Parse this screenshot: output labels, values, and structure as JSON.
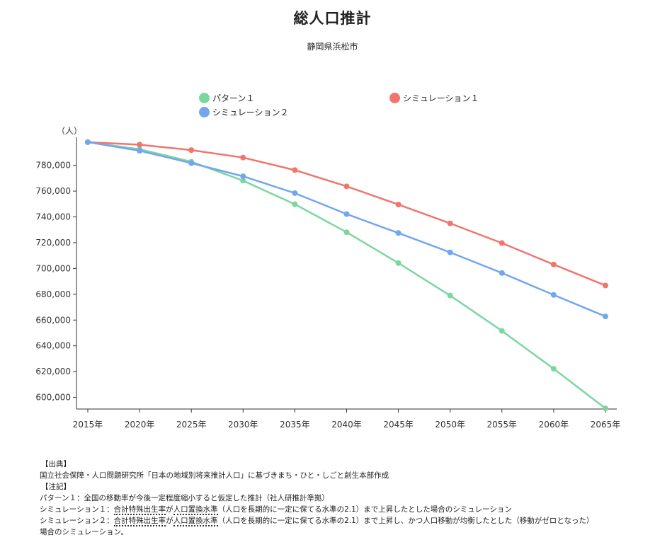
{
  "title": "総人口推計",
  "subtitle": "静岡県浜松市",
  "colors": {
    "pattern1": "#7dd6a0",
    "sim1": "#f0756d",
    "sim2": "#72a6ef",
    "axis": "#333333"
  },
  "legend": [
    {
      "label": "パターン１",
      "color": "#7dd6a0"
    },
    {
      "label": "シミュレーション１",
      "color": "#f0756d"
    },
    {
      "label": "シミュレーション２",
      "color": "#72a6ef"
    }
  ],
  "chart_data": {
    "type": "line",
    "title": "総人口推計",
    "subtitle": "静岡県浜松市",
    "ylabel": "（人）",
    "xlabel": "",
    "ylim": [
      591000,
      799000
    ],
    "yticks": [
      600000,
      620000,
      640000,
      660000,
      680000,
      700000,
      720000,
      740000,
      760000,
      780000
    ],
    "ytick_labels": [
      "600,000",
      "620,000",
      "640,000",
      "660,000",
      "680,000",
      "700,000",
      "720,000",
      "740,000",
      "760,000",
      "780,000"
    ],
    "categories": [
      "2015年",
      "2020年",
      "2025年",
      "2030年",
      "2035年",
      "2040年",
      "2045年",
      "2050年",
      "2055年",
      "2060年",
      "2065年"
    ],
    "legend_position": "top",
    "grid": false,
    "series": [
      {
        "name": "パターン１",
        "color": "#7dd6a0",
        "values": [
          797980,
          792500,
          782800,
          768100,
          749800,
          728100,
          704200,
          679000,
          651600,
          622200,
          591500
        ]
      },
      {
        "name": "シミュレーション１",
        "color": "#f0756d",
        "values": [
          797980,
          796000,
          791800,
          786000,
          776300,
          763700,
          749600,
          735000,
          719700,
          703100,
          686800
        ]
      },
      {
        "name": "シミュレーション２",
        "color": "#72a6ef",
        "values": [
          797980,
          791300,
          781700,
          771500,
          758400,
          742200,
          727500,
          712500,
          696500,
          679500,
          662800
        ]
      }
    ]
  },
  "notes": {
    "source_head": "【出典】",
    "source_text": "国立社会保障・人口問題研究所「日本の地域別将来推計人口」に基づきまち・ひと・しごと創生本部作成",
    "note_head": "【注記】",
    "line1": "パターン１：全国の移動率が今後一定程度縮小すると仮定した推計（社人研推計準拠）",
    "line2_prefix": "シミュレーション１：",
    "line2_term1": "合計特殊出生率",
    "line2_mid": "が",
    "line2_term2": "人口置換水準",
    "line2_suffix": "（人口を長期的に一定に保てる水準の2.1）まで上昇したとした場合のシミュレーション",
    "line3_prefix": "シミュレーション２：",
    "line3_term1": "合計特殊出生率",
    "line3_mid": "が",
    "line3_term2": "人口置換水準",
    "line3_suffix": "（人口を長期的に一定に保てる水準の2.1）まで上昇し、かつ人口移動が均衡したとした（移動がゼロとなった）",
    "line4": "場合のシミュレーション。"
  }
}
